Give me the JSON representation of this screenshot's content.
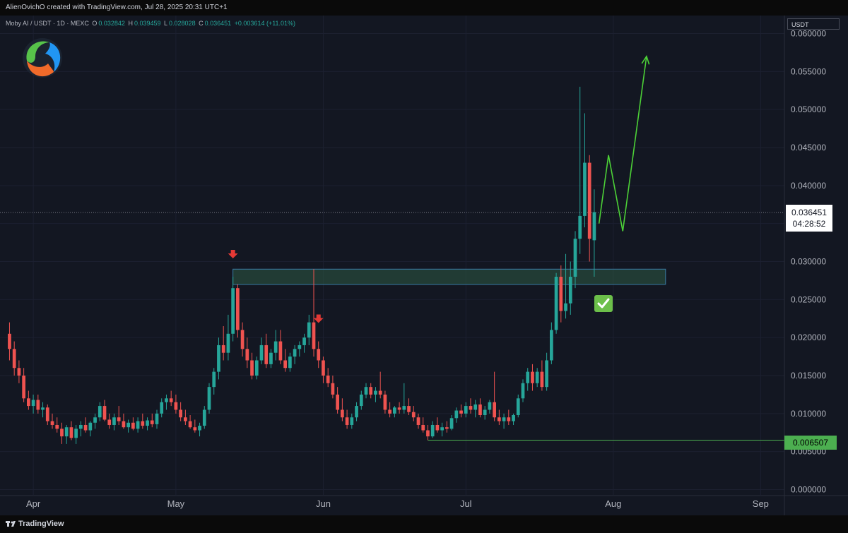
{
  "header": {
    "credit": "AlienOvichO created with TradingView.com, Jul 28, 2025 20:31 UTC+1"
  },
  "legend": {
    "symbol": "Moby AI / USDT · 1D · MEXC",
    "o_label": "O",
    "o_value": "0.032842",
    "h_label": "H",
    "h_value": "0.039459",
    "l_label": "L",
    "l_value": "0.028028",
    "c_label": "C",
    "c_value": "0.036451",
    "change": "+0.003614 (+11.01%)"
  },
  "currency_button": "USDT",
  "last_price": {
    "price": "0.036451",
    "countdown": "04:28:52"
  },
  "low_marker": {
    "price": "0.006507"
  },
  "footer": {
    "brand": "TradingView"
  },
  "colors": {
    "up": "#26a69a",
    "down": "#ef5350",
    "background": "#131722",
    "zone": "#2e5a44",
    "projection": "#4cd137",
    "arrow": "#e53935",
    "low_line": "#4caf50"
  },
  "chart_data": {
    "type": "candlestick",
    "symbol": "Moby AI / USDT",
    "timeframe": "1D",
    "exchange": "MEXC",
    "y_axis_ticks": [
      "0.060000",
      "0.055000",
      "0.050000",
      "0.045000",
      "0.040000",
      "0.035000",
      "0.030000",
      "0.025000",
      "0.020000",
      "0.015000",
      "0.010000",
      "0.005000",
      "0.000000"
    ],
    "ylim": [
      0,
      0.06
    ],
    "x_axis_ticks": [
      "Apr",
      "May",
      "Jun",
      "Jul",
      "Aug",
      "Sep"
    ],
    "x_tick_dates": [
      "2025-04-01",
      "2025-05-01",
      "2025-06-01",
      "2025-07-01",
      "2025-08-01",
      "2025-09-01"
    ],
    "xlim": [
      "2025-03-25",
      "2025-09-06"
    ],
    "resistance_zone": {
      "low": 0.027,
      "high": 0.029,
      "start": "2025-05-13",
      "end": "2025-08-12"
    },
    "support_line": {
      "value": 0.006507,
      "start": "2025-06-23"
    },
    "last_close": 0.036451,
    "down_arrows_at": [
      "2025-05-13",
      "2025-05-31"
    ],
    "projection_path": [
      {
        "date": "2025-07-29",
        "value": 0.035
      },
      {
        "date": "2025-07-31",
        "value": 0.044
      },
      {
        "date": "2025-08-03",
        "value": 0.034
      },
      {
        "date": "2025-08-08",
        "value": 0.057
      }
    ],
    "candles": [
      {
        "d": "2025-03-27",
        "o": 0.0205,
        "h": 0.022,
        "l": 0.017,
        "c": 0.0185
      },
      {
        "d": "2025-03-28",
        "o": 0.0185,
        "h": 0.0195,
        "l": 0.015,
        "c": 0.016
      },
      {
        "d": "2025-03-29",
        "o": 0.016,
        "h": 0.017,
        "l": 0.014,
        "c": 0.015
      },
      {
        "d": "2025-03-30",
        "o": 0.015,
        "h": 0.016,
        "l": 0.0115,
        "c": 0.012
      },
      {
        "d": "2025-03-31",
        "o": 0.012,
        "h": 0.013,
        "l": 0.0105,
        "c": 0.011
      },
      {
        "d": "2025-04-01",
        "o": 0.011,
        "h": 0.0125,
        "l": 0.01,
        "c": 0.0118
      },
      {
        "d": "2025-04-02",
        "o": 0.0118,
        "h": 0.0125,
        "l": 0.01,
        "c": 0.0105
      },
      {
        "d": "2025-04-03",
        "o": 0.0105,
        "h": 0.0115,
        "l": 0.0095,
        "c": 0.0108
      },
      {
        "d": "2025-04-04",
        "o": 0.0108,
        "h": 0.0112,
        "l": 0.0085,
        "c": 0.009
      },
      {
        "d": "2025-04-05",
        "o": 0.009,
        "h": 0.01,
        "l": 0.008,
        "c": 0.0085
      },
      {
        "d": "2025-04-06",
        "o": 0.0085,
        "h": 0.0095,
        "l": 0.0075,
        "c": 0.008
      },
      {
        "d": "2025-04-07",
        "o": 0.008,
        "h": 0.0088,
        "l": 0.006,
        "c": 0.007
      },
      {
        "d": "2025-04-08",
        "o": 0.007,
        "h": 0.0085,
        "l": 0.006,
        "c": 0.0082
      },
      {
        "d": "2025-04-09",
        "o": 0.0082,
        "h": 0.009,
        "l": 0.0065,
        "c": 0.0068
      },
      {
        "d": "2025-04-10",
        "o": 0.0068,
        "h": 0.0085,
        "l": 0.006,
        "c": 0.008
      },
      {
        "d": "2025-04-11",
        "o": 0.008,
        "h": 0.009,
        "l": 0.007,
        "c": 0.0085
      },
      {
        "d": "2025-04-12",
        "o": 0.0085,
        "h": 0.0095,
        "l": 0.0075,
        "c": 0.0078
      },
      {
        "d": "2025-04-13",
        "o": 0.0078,
        "h": 0.009,
        "l": 0.007,
        "c": 0.0088
      },
      {
        "d": "2025-04-14",
        "o": 0.0088,
        "h": 0.01,
        "l": 0.008,
        "c": 0.0095
      },
      {
        "d": "2025-04-15",
        "o": 0.0095,
        "h": 0.0115,
        "l": 0.009,
        "c": 0.011
      },
      {
        "d": "2025-04-16",
        "o": 0.011,
        "h": 0.0118,
        "l": 0.009,
        "c": 0.0092
      },
      {
        "d": "2025-04-17",
        "o": 0.0092,
        "h": 0.01,
        "l": 0.008,
        "c": 0.0085
      },
      {
        "d": "2025-04-18",
        "o": 0.0085,
        "h": 0.01,
        "l": 0.0078,
        "c": 0.0095
      },
      {
        "d": "2025-04-19",
        "o": 0.0095,
        "h": 0.011,
        "l": 0.0085,
        "c": 0.009
      },
      {
        "d": "2025-04-20",
        "o": 0.009,
        "h": 0.01,
        "l": 0.008,
        "c": 0.0082
      },
      {
        "d": "2025-04-21",
        "o": 0.0082,
        "h": 0.0092,
        "l": 0.0075,
        "c": 0.0088
      },
      {
        "d": "2025-04-22",
        "o": 0.0088,
        "h": 0.0095,
        "l": 0.0078,
        "c": 0.008
      },
      {
        "d": "2025-04-23",
        "o": 0.008,
        "h": 0.0095,
        "l": 0.0075,
        "c": 0.009
      },
      {
        "d": "2025-04-24",
        "o": 0.009,
        "h": 0.01,
        "l": 0.008,
        "c": 0.0084
      },
      {
        "d": "2025-04-25",
        "o": 0.0084,
        "h": 0.0095,
        "l": 0.0078,
        "c": 0.0091
      },
      {
        "d": "2025-04-26",
        "o": 0.0091,
        "h": 0.01,
        "l": 0.0082,
        "c": 0.0086
      },
      {
        "d": "2025-04-27",
        "o": 0.0086,
        "h": 0.0105,
        "l": 0.008,
        "c": 0.01
      },
      {
        "d": "2025-04-28",
        "o": 0.01,
        "h": 0.012,
        "l": 0.0095,
        "c": 0.0115
      },
      {
        "d": "2025-04-29",
        "o": 0.0115,
        "h": 0.0125,
        "l": 0.0105,
        "c": 0.012
      },
      {
        "d": "2025-04-30",
        "o": 0.012,
        "h": 0.013,
        "l": 0.011,
        "c": 0.0115
      },
      {
        "d": "2025-05-01",
        "o": 0.0115,
        "h": 0.0125,
        "l": 0.01,
        "c": 0.0105
      },
      {
        "d": "2025-05-02",
        "o": 0.0105,
        "h": 0.0115,
        "l": 0.009,
        "c": 0.0095
      },
      {
        "d": "2025-05-03",
        "o": 0.0095,
        "h": 0.0105,
        "l": 0.0085,
        "c": 0.009
      },
      {
        "d": "2025-05-04",
        "o": 0.009,
        "h": 0.0098,
        "l": 0.008,
        "c": 0.0082
      },
      {
        "d": "2025-05-05",
        "o": 0.0082,
        "h": 0.0092,
        "l": 0.0075,
        "c": 0.0078
      },
      {
        "d": "2025-05-06",
        "o": 0.0078,
        "h": 0.0088,
        "l": 0.007,
        "c": 0.0084
      },
      {
        "d": "2025-05-07",
        "o": 0.0084,
        "h": 0.011,
        "l": 0.008,
        "c": 0.0105
      },
      {
        "d": "2025-05-08",
        "o": 0.0105,
        "h": 0.014,
        "l": 0.01,
        "c": 0.0135
      },
      {
        "d": "2025-05-09",
        "o": 0.0135,
        "h": 0.016,
        "l": 0.0125,
        "c": 0.0155
      },
      {
        "d": "2025-05-10",
        "o": 0.0155,
        "h": 0.02,
        "l": 0.0145,
        "c": 0.019
      },
      {
        "d": "2025-05-11",
        "o": 0.019,
        "h": 0.0215,
        "l": 0.017,
        "c": 0.018
      },
      {
        "d": "2025-05-12",
        "o": 0.018,
        "h": 0.023,
        "l": 0.017,
        "c": 0.0205
      },
      {
        "d": "2025-05-13",
        "o": 0.0205,
        "h": 0.028,
        "l": 0.0195,
        "c": 0.0265
      },
      {
        "d": "2025-05-14",
        "o": 0.0265,
        "h": 0.027,
        "l": 0.02,
        "c": 0.021
      },
      {
        "d": "2025-05-15",
        "o": 0.021,
        "h": 0.022,
        "l": 0.0175,
        "c": 0.0185
      },
      {
        "d": "2025-05-16",
        "o": 0.0185,
        "h": 0.02,
        "l": 0.016,
        "c": 0.017
      },
      {
        "d": "2025-05-17",
        "o": 0.017,
        "h": 0.018,
        "l": 0.0145,
        "c": 0.015
      },
      {
        "d": "2025-05-18",
        "o": 0.015,
        "h": 0.0175,
        "l": 0.0145,
        "c": 0.017
      },
      {
        "d": "2025-05-19",
        "o": 0.017,
        "h": 0.02,
        "l": 0.0165,
        "c": 0.019
      },
      {
        "d": "2025-05-20",
        "o": 0.019,
        "h": 0.0205,
        "l": 0.016,
        "c": 0.0165
      },
      {
        "d": "2025-05-21",
        "o": 0.0165,
        "h": 0.0185,
        "l": 0.016,
        "c": 0.018
      },
      {
        "d": "2025-05-22",
        "o": 0.018,
        "h": 0.021,
        "l": 0.017,
        "c": 0.0195
      },
      {
        "d": "2025-05-23",
        "o": 0.0195,
        "h": 0.021,
        "l": 0.0165,
        "c": 0.017
      },
      {
        "d": "2025-05-24",
        "o": 0.017,
        "h": 0.0185,
        "l": 0.0155,
        "c": 0.016
      },
      {
        "d": "2025-05-25",
        "o": 0.016,
        "h": 0.018,
        "l": 0.0155,
        "c": 0.0175
      },
      {
        "d": "2025-05-26",
        "o": 0.0175,
        "h": 0.019,
        "l": 0.0165,
        "c": 0.0185
      },
      {
        "d": "2025-05-27",
        "o": 0.0185,
        "h": 0.0195,
        "l": 0.0175,
        "c": 0.019
      },
      {
        "d": "2025-05-28",
        "o": 0.019,
        "h": 0.0205,
        "l": 0.018,
        "c": 0.02
      },
      {
        "d": "2025-05-29",
        "o": 0.02,
        "h": 0.023,
        "l": 0.019,
        "c": 0.022
      },
      {
        "d": "2025-05-30",
        "o": 0.022,
        "h": 0.029,
        "l": 0.0175,
        "c": 0.0185
      },
      {
        "d": "2025-05-31",
        "o": 0.0185,
        "h": 0.0195,
        "l": 0.016,
        "c": 0.017
      },
      {
        "d": "2025-06-01",
        "o": 0.017,
        "h": 0.0175,
        "l": 0.014,
        "c": 0.015
      },
      {
        "d": "2025-06-02",
        "o": 0.015,
        "h": 0.016,
        "l": 0.0135,
        "c": 0.014
      },
      {
        "d": "2025-06-03",
        "o": 0.014,
        "h": 0.015,
        "l": 0.012,
        "c": 0.0125
      },
      {
        "d": "2025-06-04",
        "o": 0.0125,
        "h": 0.0135,
        "l": 0.01,
        "c": 0.0105
      },
      {
        "d": "2025-06-05",
        "o": 0.0105,
        "h": 0.012,
        "l": 0.009,
        "c": 0.0095
      },
      {
        "d": "2025-06-06",
        "o": 0.0095,
        "h": 0.0105,
        "l": 0.008,
        "c": 0.0085
      },
      {
        "d": "2025-06-07",
        "o": 0.0085,
        "h": 0.01,
        "l": 0.008,
        "c": 0.0095
      },
      {
        "d": "2025-06-08",
        "o": 0.0095,
        "h": 0.0115,
        "l": 0.009,
        "c": 0.011
      },
      {
        "d": "2025-06-09",
        "o": 0.011,
        "h": 0.013,
        "l": 0.0105,
        "c": 0.0125
      },
      {
        "d": "2025-06-10",
        "o": 0.0125,
        "h": 0.014,
        "l": 0.012,
        "c": 0.0135
      },
      {
        "d": "2025-06-11",
        "o": 0.0135,
        "h": 0.014,
        "l": 0.012,
        "c": 0.0125
      },
      {
        "d": "2025-06-12",
        "o": 0.0125,
        "h": 0.0135,
        "l": 0.0115,
        "c": 0.013
      },
      {
        "d": "2025-06-13",
        "o": 0.013,
        "h": 0.0155,
        "l": 0.012,
        "c": 0.0125
      },
      {
        "d": "2025-06-14",
        "o": 0.0125,
        "h": 0.013,
        "l": 0.01,
        "c": 0.0105
      },
      {
        "d": "2025-06-15",
        "o": 0.0105,
        "h": 0.0115,
        "l": 0.0095,
        "c": 0.01
      },
      {
        "d": "2025-06-16",
        "o": 0.01,
        "h": 0.011,
        "l": 0.0095,
        "c": 0.0108
      },
      {
        "d": "2025-06-17",
        "o": 0.0108,
        "h": 0.0115,
        "l": 0.01,
        "c": 0.0105
      },
      {
        "d": "2025-06-18",
        "o": 0.0105,
        "h": 0.014,
        "l": 0.01,
        "c": 0.011
      },
      {
        "d": "2025-06-19",
        "o": 0.011,
        "h": 0.012,
        "l": 0.0098,
        "c": 0.0102
      },
      {
        "d": "2025-06-20",
        "o": 0.0102,
        "h": 0.011,
        "l": 0.009,
        "c": 0.0095
      },
      {
        "d": "2025-06-21",
        "o": 0.0095,
        "h": 0.01,
        "l": 0.008,
        "c": 0.0085
      },
      {
        "d": "2025-06-22",
        "o": 0.0085,
        "h": 0.0095,
        "l": 0.0075,
        "c": 0.0078
      },
      {
        "d": "2025-06-23",
        "o": 0.0078,
        "h": 0.0085,
        "l": 0.0065,
        "c": 0.007
      },
      {
        "d": "2025-06-24",
        "o": 0.007,
        "h": 0.009,
        "l": 0.0068,
        "c": 0.0085
      },
      {
        "d": "2025-06-25",
        "o": 0.0085,
        "h": 0.0095,
        "l": 0.0075,
        "c": 0.0078
      },
      {
        "d": "2025-06-26",
        "o": 0.0078,
        "h": 0.0088,
        "l": 0.007,
        "c": 0.0082
      },
      {
        "d": "2025-06-27",
        "o": 0.0082,
        "h": 0.009,
        "l": 0.0075,
        "c": 0.008
      },
      {
        "d": "2025-06-28",
        "o": 0.008,
        "h": 0.0098,
        "l": 0.0078,
        "c": 0.0094
      },
      {
        "d": "2025-06-29",
        "o": 0.0094,
        "h": 0.0108,
        "l": 0.0088,
        "c": 0.0104
      },
      {
        "d": "2025-06-30",
        "o": 0.0104,
        "h": 0.0112,
        "l": 0.0095,
        "c": 0.01
      },
      {
        "d": "2025-07-01",
        "o": 0.01,
        "h": 0.0115,
        "l": 0.0095,
        "c": 0.011
      },
      {
        "d": "2025-07-02",
        "o": 0.011,
        "h": 0.012,
        "l": 0.01,
        "c": 0.0105
      },
      {
        "d": "2025-07-03",
        "o": 0.0105,
        "h": 0.0118,
        "l": 0.0095,
        "c": 0.0112
      },
      {
        "d": "2025-07-04",
        "o": 0.0112,
        "h": 0.012,
        "l": 0.0095,
        "c": 0.0098
      },
      {
        "d": "2025-07-05",
        "o": 0.0098,
        "h": 0.011,
        "l": 0.0092,
        "c": 0.0105
      },
      {
        "d": "2025-07-06",
        "o": 0.0105,
        "h": 0.0118,
        "l": 0.01,
        "c": 0.0115
      },
      {
        "d": "2025-07-07",
        "o": 0.0115,
        "h": 0.0155,
        "l": 0.009,
        "c": 0.0095
      },
      {
        "d": "2025-07-08",
        "o": 0.0095,
        "h": 0.0105,
        "l": 0.0085,
        "c": 0.009
      },
      {
        "d": "2025-07-09",
        "o": 0.009,
        "h": 0.01,
        "l": 0.008,
        "c": 0.0095
      },
      {
        "d": "2025-07-10",
        "o": 0.0095,
        "h": 0.0105,
        "l": 0.0085,
        "c": 0.009
      },
      {
        "d": "2025-07-11",
        "o": 0.009,
        "h": 0.01,
        "l": 0.0085,
        "c": 0.0098
      },
      {
        "d": "2025-07-12",
        "o": 0.0098,
        "h": 0.0125,
        "l": 0.0095,
        "c": 0.012
      },
      {
        "d": "2025-07-13",
        "o": 0.012,
        "h": 0.0145,
        "l": 0.0115,
        "c": 0.014
      },
      {
        "d": "2025-07-14",
        "o": 0.014,
        "h": 0.016,
        "l": 0.013,
        "c": 0.0155
      },
      {
        "d": "2025-07-15",
        "o": 0.0155,
        "h": 0.0165,
        "l": 0.013,
        "c": 0.014
      },
      {
        "d": "2025-07-16",
        "o": 0.014,
        "h": 0.016,
        "l": 0.0135,
        "c": 0.0155
      },
      {
        "d": "2025-07-17",
        "o": 0.0155,
        "h": 0.017,
        "l": 0.013,
        "c": 0.0135
      },
      {
        "d": "2025-07-18",
        "o": 0.0135,
        "h": 0.018,
        "l": 0.013,
        "c": 0.017
      },
      {
        "d": "2025-07-19",
        "o": 0.017,
        "h": 0.022,
        "l": 0.0165,
        "c": 0.021
      },
      {
        "d": "2025-07-20",
        "o": 0.021,
        "h": 0.0285,
        "l": 0.0205,
        "c": 0.028
      },
      {
        "d": "2025-07-21",
        "o": 0.028,
        "h": 0.0295,
        "l": 0.022,
        "c": 0.0235
      },
      {
        "d": "2025-07-22",
        "o": 0.0235,
        "h": 0.031,
        "l": 0.0225,
        "c": 0.0245
      },
      {
        "d": "2025-07-23",
        "o": 0.0245,
        "h": 0.03,
        "l": 0.023,
        "c": 0.028
      },
      {
        "d": "2025-07-24",
        "o": 0.028,
        "h": 0.034,
        "l": 0.0265,
        "c": 0.033
      },
      {
        "d": "2025-07-25",
        "o": 0.033,
        "h": 0.053,
        "l": 0.031,
        "c": 0.036
      },
      {
        "d": "2025-07-26",
        "o": 0.036,
        "h": 0.0495,
        "l": 0.0345,
        "c": 0.043
      },
      {
        "d": "2025-07-27",
        "o": 0.043,
        "h": 0.044,
        "l": 0.03,
        "c": 0.033
      },
      {
        "d": "2025-07-28",
        "o": 0.0328,
        "h": 0.0395,
        "l": 0.028,
        "c": 0.0365
      }
    ]
  }
}
